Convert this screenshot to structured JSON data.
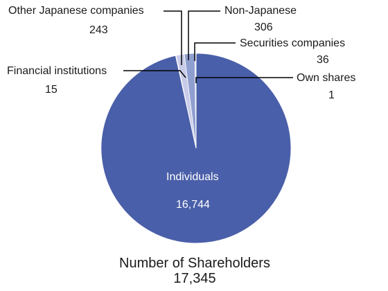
{
  "chart_data": {
    "type": "pie",
    "title": "",
    "slices": [
      {
        "label": "Individuals",
        "value": 16744,
        "value_text": "16,744",
        "color": "#4a5fa9"
      },
      {
        "label": "Financial institutions",
        "value": 15,
        "value_text": "15",
        "color": "#8f9fd0"
      },
      {
        "label": "Other Japanese companies",
        "value": 243,
        "value_text": "243",
        "color": "#c8cce8"
      },
      {
        "label": "Non-Japanese",
        "value": 306,
        "value_text": "306",
        "color": "#8f9fd0"
      },
      {
        "label": "Securities companies",
        "value": 36,
        "value_text": "36",
        "color": "#c8cce8"
      },
      {
        "label": "Own shares",
        "value": 1,
        "value_text": "1",
        "color": "#4a5fa9"
      }
    ]
  },
  "summary": {
    "label": "Number of Shareholders",
    "total": "17,345"
  }
}
